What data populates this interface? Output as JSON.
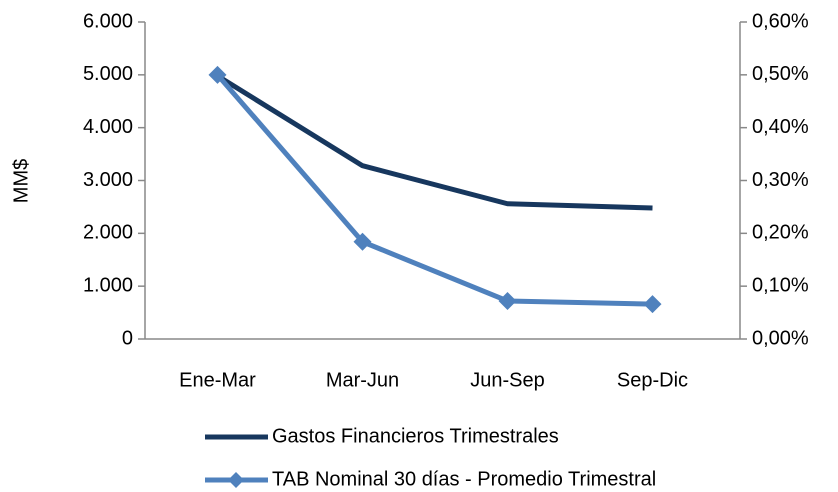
{
  "chart_data": {
    "type": "line",
    "categories": [
      "Ene-Mar",
      "Mar-Jun",
      "Jun-Sep",
      "Sep-Dic"
    ],
    "ylabel": "MM$",
    "ylim": [
      0,
      6000
    ],
    "yticks": [
      {
        "value": 0,
        "label": "0"
      },
      {
        "value": 1000,
        "label": "1.000"
      },
      {
        "value": 2000,
        "label": "2.000"
      },
      {
        "value": 3000,
        "label": "3.000"
      },
      {
        "value": 4000,
        "label": "4.000"
      },
      {
        "value": 5000,
        "label": "5.000"
      },
      {
        "value": 6000,
        "label": "6.000"
      }
    ],
    "y2lim": [
      0,
      0.6
    ],
    "y2ticks": [
      {
        "value": 0,
        "label": "0,00%"
      },
      {
        "value": 0.1,
        "label": "0,10%"
      },
      {
        "value": 0.2,
        "label": "0,20%"
      },
      {
        "value": 0.3,
        "label": "0,30%"
      },
      {
        "value": 0.4,
        "label": "0,40%"
      },
      {
        "value": 0.5,
        "label": "0,50%"
      },
      {
        "value": 0.6,
        "label": "0,60%"
      }
    ],
    "series": [
      {
        "name": "Gastos Financieros Trimestrales",
        "color": "#17375e",
        "values": [
          4980,
          3280,
          2560,
          2480
        ]
      },
      {
        "name": "TAB Nominal 30 días - Promedio Trimestral",
        "color": "#4f81bd",
        "axis": "y2",
        "marker": "diamond",
        "values": [
          0.5,
          0.184,
          0.072,
          0.066
        ]
      }
    ],
    "grid": false,
    "legend": "bottom"
  }
}
